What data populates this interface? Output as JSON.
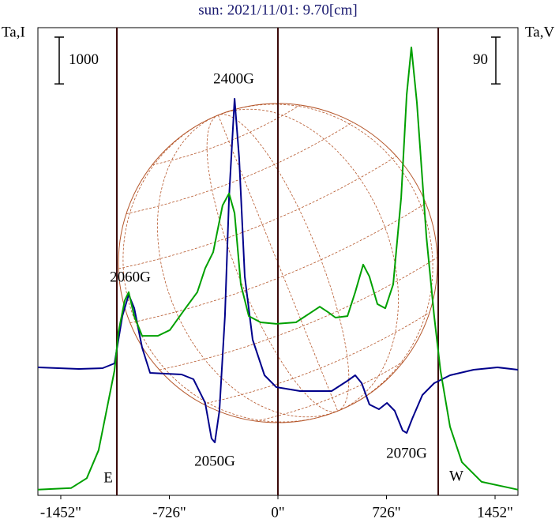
{
  "chart_data": {
    "type": "line",
    "title": "sun: 2021/11/01: 9.70[cm]",
    "y_label": "Ta,I",
    "y2_label": "Ta,V",
    "xlim": [
      -1605,
      1605
    ],
    "xticks": [
      {
        "value": -1452,
        "label": "-1452\""
      },
      {
        "value": -726,
        "label": "-726\""
      },
      {
        "value": 0,
        "label": "0\""
      },
      {
        "value": 726,
        "label": "726\""
      },
      {
        "value": 1452,
        "label": "1452\""
      }
    ],
    "ylim": [
      0,
      10000
    ],
    "y2lim": [
      0,
      900
    ],
    "y_scale_bar": 1000,
    "y2_scale_bar": 90,
    "vlines": [
      -1077,
      0,
      1072
    ],
    "annotations": [
      "2400G",
      "2060G",
      "2050G",
      "2070G",
      "E",
      "W"
    ],
    "series": [
      {
        "color": "#00008b",
        "axis": "y",
        "x": [
          -1605,
          -1331,
          -1172,
          -1093,
          -1040,
          -998,
          -961,
          -908,
          -855,
          -644,
          -565,
          -486,
          -444,
          -422,
          -391,
          -354,
          -327,
          -290,
          -259,
          -222,
          -169,
          -90,
          -11,
          148,
          359,
          465,
          517,
          560,
          612,
          676,
          729,
          781,
          834,
          861,
          898,
          966,
          1045,
          1151,
          1309,
          1468,
          1605
        ],
        "values": [
          2736,
          2703,
          2720,
          2821,
          3834,
          4291,
          4003,
          3159,
          2618,
          2584,
          2483,
          1976,
          1216,
          1132,
          1807,
          3834,
          6368,
          8480,
          7213,
          4679,
          3328,
          2568,
          2314,
          2230,
          2230,
          2449,
          2568,
          2399,
          1943,
          1841,
          1976,
          1807,
          1385,
          1334,
          1639,
          2145,
          2399,
          2568,
          2686,
          2736,
          2686
        ]
      },
      {
        "color": "#00a000",
        "axis": "y2",
        "x": [
          -1605,
          -1383,
          -1278,
          -1199,
          -1146,
          -1093,
          -1066,
          -1024,
          -998,
          -961,
          -908,
          -803,
          -723,
          -618,
          -539,
          -486,
          -433,
          -370,
          -327,
          -290,
          -248,
          -195,
          -116,
          -11,
          121,
          227,
          280,
          333,
          385,
          465,
          517,
          570,
          612,
          665,
          718,
          771,
          824,
          861,
          892,
          929,
          993,
          1045,
          1087,
          1151,
          1230,
          1362,
          1605
        ],
        "values": [
          11,
          14,
          33,
          87,
          163,
          240,
          315,
          375,
          391,
          345,
          307,
          307,
          318,
          360,
          391,
          437,
          468,
          558,
          581,
          543,
          406,
          345,
          333,
          330,
          333,
          353,
          363,
          353,
          342,
          345,
          391,
          444,
          421,
          368,
          360,
          406,
          573,
          771,
          862,
          756,
          497,
          345,
          240,
          132,
          64,
          26,
          11
        ]
      }
    ]
  }
}
